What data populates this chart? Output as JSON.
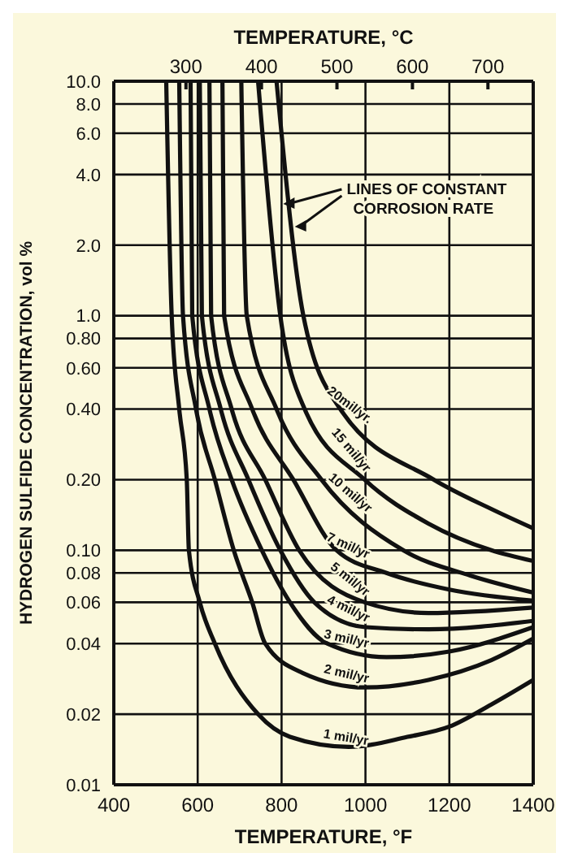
{
  "chart_data": {
    "type": "line",
    "xlabel": "TEMPERATURE, °F",
    "x2label": "TEMPERATURE, °C",
    "ylabel": "HYDROGEN SULFIDE CONCENTRATION, vol %",
    "xlim": [
      400,
      1400
    ],
    "xticks": [
      400,
      600,
      800,
      1000,
      1200,
      1400
    ],
    "x2lim": [
      204.4,
      760
    ],
    "x2ticks": [
      300,
      400,
      500,
      600,
      700
    ],
    "ylim": [
      0.01,
      10
    ],
    "log": "y",
    "yticks": [
      {
        "value": 10,
        "label": "10.0"
      },
      {
        "value": 8,
        "label": "8.0"
      },
      {
        "value": 6,
        "label": "6.0"
      },
      {
        "value": 4,
        "label": "4.0"
      },
      {
        "value": 2,
        "label": "2.0"
      },
      {
        "value": 1,
        "label": "1.0"
      },
      {
        "value": 0.8,
        "label": "0.80"
      },
      {
        "value": 0.6,
        "label": "0.60"
      },
      {
        "value": 0.4,
        "label": "0.40"
      },
      {
        "value": 0.2,
        "label": "0.20"
      },
      {
        "value": 0.1,
        "label": "0.10"
      },
      0.08,
      0.06,
      0.04,
      0.02,
      0.01
    ],
    "grid": true,
    "annotations": [
      {
        "text": "LINES OF CONSTANT CORROSION RATE",
        "x": 800,
        "y": 3
      }
    ],
    "series": [
      {
        "name": "1 mil/yr",
        "color": "#111111",
        "x": [
          525,
          538,
          556,
          574,
          579,
          605,
          641,
          744,
          820,
          960,
          1100,
          1200,
          1300,
          1400
        ],
        "values": [
          10,
          1,
          0.4,
          0.2,
          0.1,
          0.06,
          0.04,
          0.02,
          0.016,
          0.0145,
          0.016,
          0.0177,
          0.022,
          0.028
        ]
      },
      {
        "name": "2 mil/yr",
        "color": "#111111",
        "x": [
          556,
          565,
          596,
          641,
          686,
          730,
          761,
          850,
          1000,
          1150,
          1300,
          1400
        ],
        "values": [
          10,
          1,
          0.4,
          0.2,
          0.1,
          0.06,
          0.04,
          0.03,
          0.026,
          0.028,
          0.034,
          0.042
        ]
      },
      {
        "name": "3 mil/yr",
        "color": "#111111",
        "x": [
          583,
          587,
          628,
          681,
          753,
          820,
          909,
          1050,
          1200,
          1400
        ],
        "values": [
          10,
          1,
          0.4,
          0.2,
          0.1,
          0.06,
          0.04,
          0.035,
          0.037,
          0.047
        ]
      },
      {
        "name": "4 mil/yr",
        "color": "#111111",
        "x": [
          605,
          610,
          655,
          721,
          797,
          878,
          1000,
          1150,
          1400
        ],
        "values": [
          10,
          1,
          0.4,
          0.2,
          0.1,
          0.06,
          0.047,
          0.046,
          0.05
        ]
      },
      {
        "name": "5 mil/yr",
        "color": "#111111",
        "x": [
          628,
          632,
          681,
          761,
          842,
          998,
          1150,
          1400
        ],
        "values": [
          10,
          1,
          0.4,
          0.2,
          0.1,
          0.06,
          0.054,
          0.057
        ]
      },
      {
        "name": "7 mil/yr",
        "color": "#111111",
        "x": [
          659,
          663,
          730,
          828,
          931,
          1050,
          1200,
          1400
        ],
        "values": [
          10,
          1,
          0.4,
          0.2,
          0.1,
          0.08,
          0.068,
          0.061
        ]
      },
      {
        "name": "10 mil/yr",
        "color": "#111111",
        "x": [
          704,
          717,
          788,
          895,
          1090,
          1250,
          1400
        ],
        "values": [
          10,
          1,
          0.4,
          0.2,
          0.1,
          0.078,
          0.066
        ]
      },
      {
        "name": "15 mil/yr",
        "color": "#111111",
        "x": [
          744,
          797,
          855,
          998,
          1150,
          1300,
          1400
        ],
        "values": [
          10,
          1,
          0.4,
          0.2,
          0.13,
          0.1,
          0.09
        ]
      },
      {
        "name": "20mil/yr.",
        "color": "#111111",
        "x": [
          788,
          852,
          940,
          1163,
          1300,
          1400
        ],
        "values": [
          10,
          1,
          0.4,
          0.2,
          0.15,
          0.124
        ]
      }
    ]
  }
}
